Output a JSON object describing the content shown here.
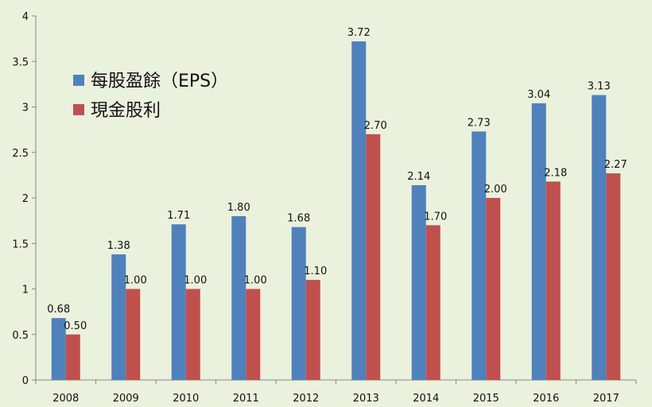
{
  "chart_data": {
    "type": "bar",
    "categories": [
      "2008",
      "2009",
      "2010",
      "2011",
      "2012",
      "2013",
      "2014",
      "2015",
      "2016",
      "2017"
    ],
    "series": [
      {
        "name": "每股盈餘（EPS）",
        "color": "#4f81bd",
        "values": [
          0.68,
          1.38,
          1.71,
          1.8,
          1.68,
          3.72,
          2.14,
          2.73,
          3.04,
          3.13
        ],
        "labels": [
          "0.68",
          "1.38",
          "1.71",
          "1.80",
          "1.68",
          "3.72",
          "2.14",
          "2.73",
          "3.04",
          "3.13"
        ]
      },
      {
        "name": "現金股利",
        "color": "#c0504d",
        "values": [
          0.5,
          1.0,
          1.0,
          1.0,
          1.1,
          2.7,
          1.7,
          2.0,
          2.18,
          2.27
        ],
        "labels": [
          "0.50",
          "1.00",
          "1.00",
          "1.00",
          "1.10",
          "2.70",
          "1.70",
          "2.00",
          "2.18",
          "2.27"
        ]
      }
    ],
    "ylim": [
      0,
      4
    ],
    "yticks": [
      "0",
      "0.5",
      "1",
      "1.5",
      "2",
      "2.5",
      "3",
      "3.5",
      "4"
    ],
    "grid": false,
    "legend_position": "top-left"
  }
}
